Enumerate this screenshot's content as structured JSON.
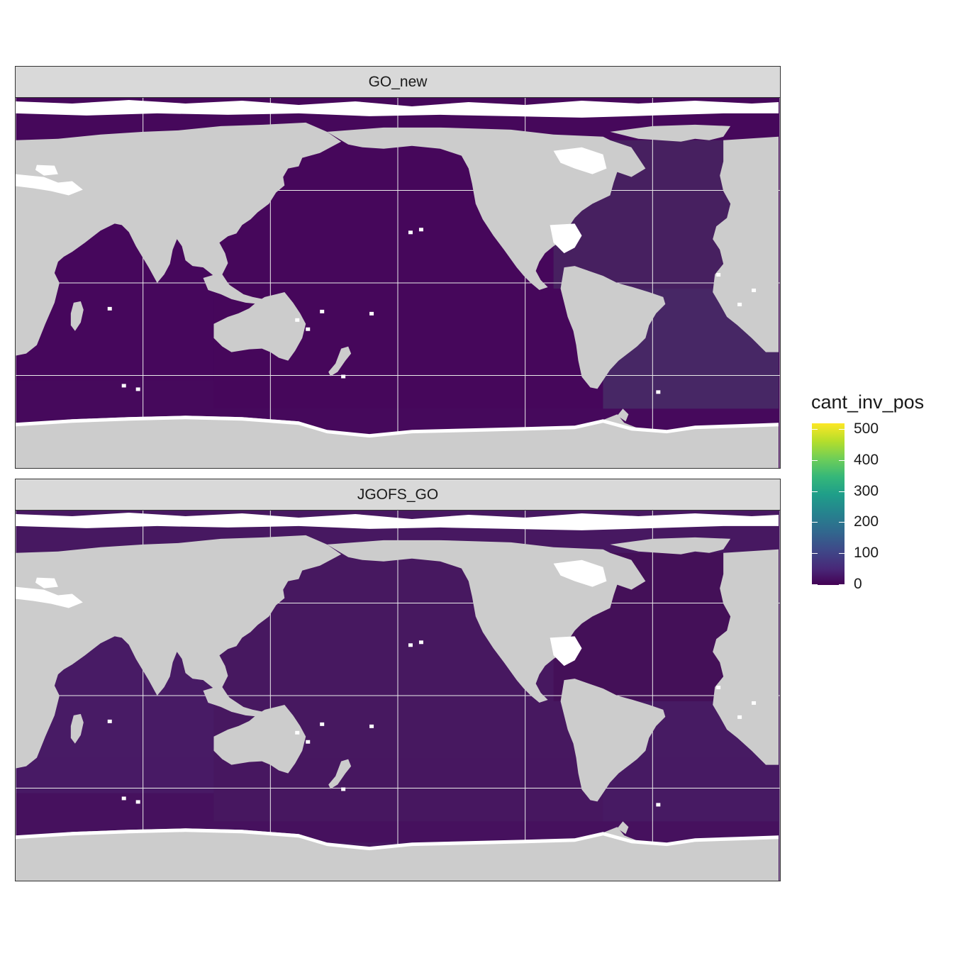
{
  "chart_data": {
    "type": "heatmap",
    "description_type": "faceted global map",
    "colorscale": "viridis",
    "ocean_colors": {
      "GO_new": {
        "southern_ocean": "#460a5c",
        "indian_ocean": "#46085c",
        "pacific_ocean": "#46085b",
        "north_atlantic": "#472461",
        "south_atlantic": "#472b66"
      },
      "JGOFS_GO": {
        "southern_ocean": "#46115e",
        "indian_ocean": "#481c66",
        "pacific_ocean": "#471861",
        "north_atlantic": "#441058",
        "south_atlantic": "#471c64"
      }
    },
    "land_color": "#cccccc",
    "facets": [
      {
        "name": "GO_new"
      },
      {
        "name": "JGOFS_GO"
      }
    ],
    "legend": {
      "title": "cant_inv_pos",
      "min": 0,
      "max": 500,
      "ticks": [
        {
          "label": "500",
          "value": 500
        },
        {
          "label": "400",
          "value": 400
        },
        {
          "label": "300",
          "value": 300
        },
        {
          "label": "200",
          "value": 200
        },
        {
          "label": "100",
          "value": 100
        },
        {
          "label": "0",
          "value": 0
        }
      ]
    }
  }
}
